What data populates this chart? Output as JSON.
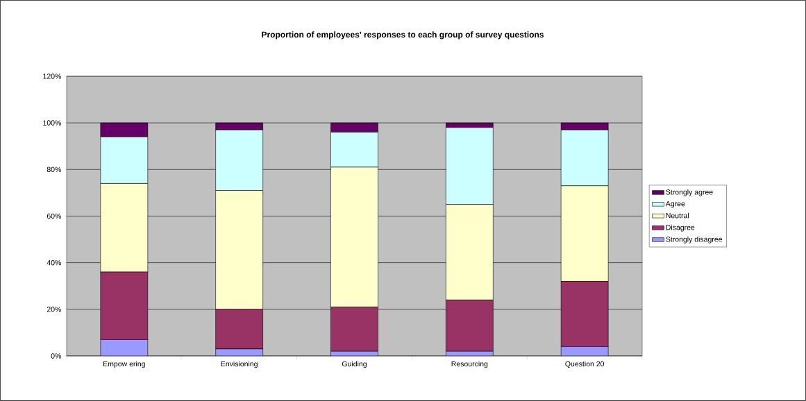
{
  "chart_data": {
    "type": "bar",
    "title": "Proportion of employees' responses to each group of survey questions",
    "categories": [
      "Empow ering",
      "Envisioning",
      "Guiding",
      "Resourcing",
      "Question 20"
    ],
    "series": [
      {
        "name": "Strongly disagree",
        "color": "#9999ff",
        "values": [
          7,
          3,
          2,
          2,
          4
        ]
      },
      {
        "name": "Disagree",
        "color": "#993366",
        "values": [
          29,
          17,
          19,
          22,
          28
        ]
      },
      {
        "name": "Neutral",
        "color": "#ffffcc",
        "values": [
          38,
          51,
          60,
          41,
          41
        ]
      },
      {
        "name": "Agree",
        "color": "#ccffff",
        "values": [
          20,
          26,
          15,
          33,
          24
        ]
      },
      {
        "name": "Strongly agree",
        "color": "#660066",
        "values": [
          6,
          3,
          4,
          2,
          3
        ]
      }
    ],
    "stacked": true,
    "ylim": [
      0,
      120
    ],
    "yticks": [
      {
        "value": 0,
        "label": "0%"
      },
      {
        "value": 20,
        "label": "20%"
      },
      {
        "value": 40,
        "label": "40%"
      },
      {
        "value": 60,
        "label": "60%"
      },
      {
        "value": 80,
        "label": "80%"
      },
      {
        "value": 100,
        "label": "100%"
      },
      {
        "value": 120,
        "label": "120%"
      }
    ],
    "grid": "y",
    "legend": "right"
  }
}
